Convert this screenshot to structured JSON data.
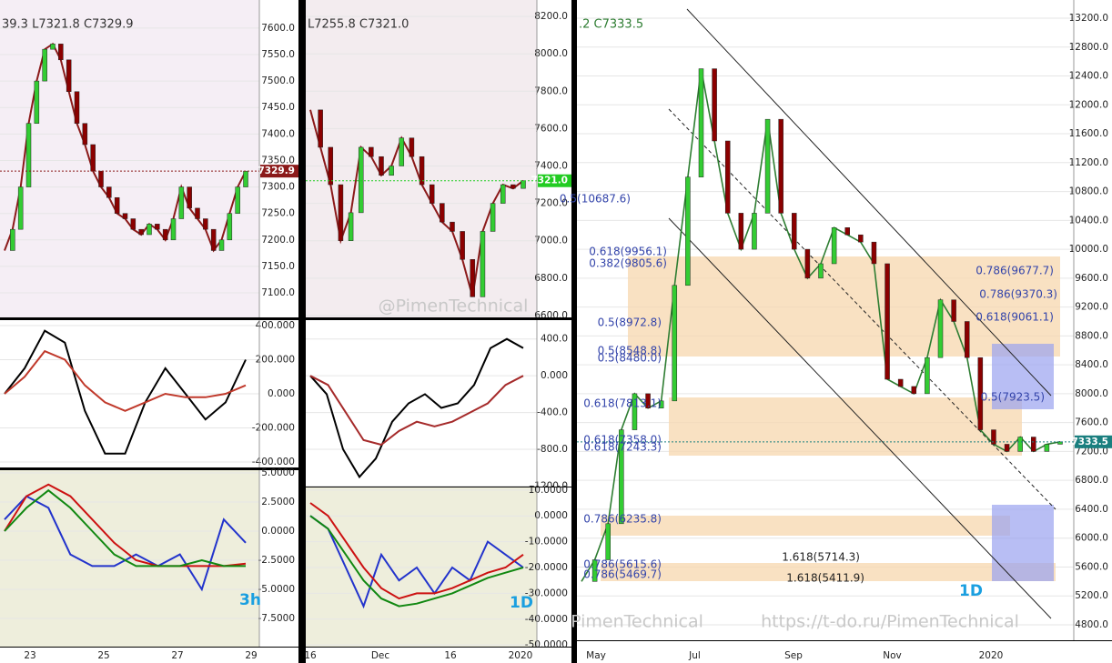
{
  "chart_data": [
    {
      "type": "line",
      "header": "39.3  L7321.8  C7329.9",
      "timeframe": "3h",
      "color": "#8b1a1a",
      "xlabels": [
        "23",
        "25",
        "27",
        "29"
      ],
      "values": [
        7180,
        7220,
        7300,
        7420,
        7500,
        7560,
        7570,
        7540,
        7480,
        7420,
        7380,
        7330,
        7300,
        7280,
        7250,
        7240,
        7220,
        7210,
        7230,
        7220,
        7200,
        7240,
        7300,
        7260,
        7240,
        7220,
        7180,
        7200,
        7250,
        7300,
        7329.9
      ],
      "ylim": [
        7052,
        7653
      ],
      "yticks": [
        {
          "value": 7100,
          "label": "7100.0"
        },
        {
          "value": 7150,
          "label": "7150.0"
        },
        {
          "value": 7200,
          "label": "7200.0"
        },
        {
          "value": 7250,
          "label": "7250.0"
        },
        {
          "value": 7300,
          "label": "7300.0"
        },
        {
          "value": 7350,
          "label": "7350.0"
        },
        {
          "value": 7400,
          "label": "7400.0"
        },
        {
          "value": 7450,
          "label": "7450.0"
        },
        {
          "value": 7500,
          "label": "7500.0"
        },
        {
          "value": 7550,
          "label": "7550.0"
        },
        {
          "value": 7600,
          "label": "7600.0"
        }
      ],
      "last_price": {
        "value": 7329.9,
        "label": "7329.9"
      },
      "last_color": "#8b1a1a",
      "indicators": [
        {
          "ylim": [
            -437,
            432
          ],
          "yticks": [
            {
              "value": 400,
              "label": "400.000"
            },
            {
              "value": 200,
              "label": "200.000"
            },
            {
              "value": 0,
              "label": "0.000"
            },
            {
              "value": -200,
              "label": "-200.000"
            },
            {
              "value": -400,
              "label": "-400.000"
            }
          ],
          "series": [
            {
              "color": "#000000",
              "values": [
                0,
                150,
                370,
                300,
                -100,
                -350,
                -350,
                -50,
                150,
                0,
                -150,
                -50,
                200
              ]
            },
            {
              "color": "#c0392b",
              "values": [
                0,
                100,
                250,
                200,
                50,
                -50,
                -100,
                -50,
                0,
                -20,
                -20,
                0,
                50
              ]
            }
          ]
        },
        {
          "ylim": [
            -10,
            5.23
          ],
          "yticks": [
            {
              "value": 5,
              "label": "5.0000"
            },
            {
              "value": 2.5,
              "label": "2.5000"
            },
            {
              "value": 0,
              "label": "0.0000"
            },
            {
              "value": -2.5,
              "label": "-2.5000"
            },
            {
              "value": -5,
              "label": "-5.0000"
            },
            {
              "value": -7.5,
              "label": "-7.5000"
            }
          ],
          "series": [
            {
              "color": "#2233cc",
              "values": [
                1,
                3,
                2,
                -2,
                -3,
                -3,
                -2,
                -3,
                -2,
                -5,
                1,
                -1
              ]
            },
            {
              "color": "#cc1111",
              "values": [
                0,
                3,
                4,
                3,
                1,
                -1,
                -2.5,
                -3,
                -3,
                -3,
                -3,
                -2.8
              ]
            },
            {
              "color": "#118811",
              "values": [
                0,
                2,
                3.5,
                2,
                0,
                -2,
                -3,
                -3,
                -3,
                -2.5,
                -3,
                -3
              ]
            }
          ]
        }
      ]
    },
    {
      "type": "line",
      "header": "L7255.8  C7321.0",
      "timeframe": "1D",
      "color": "#8b1a1a",
      "xlabels": [
        "16",
        "Dec",
        "16",
        "2020"
      ],
      "values": [
        7700,
        7500,
        7300,
        7000,
        7150,
        7500,
        7450,
        7350,
        7400,
        7550,
        7450,
        7300,
        7200,
        7100,
        7050,
        6900,
        6700,
        7050,
        7200,
        7300,
        7280,
        7321
      ],
      "ylim": [
        6585,
        8288
      ],
      "yticks": [
        {
          "value": 6600,
          "label": "6600.0"
        },
        {
          "value": 6800,
          "label": "6800.0"
        },
        {
          "value": 7000,
          "label": "7000.0"
        },
        {
          "value": 7200,
          "label": "7200.0"
        },
        {
          "value": 7400,
          "label": "7400.0"
        },
        {
          "value": 7600,
          "label": "7600.0"
        },
        {
          "value": 7800,
          "label": "7800.0"
        },
        {
          "value": 8000,
          "label": "8000.0"
        },
        {
          "value": 8200,
          "label": "8200.0"
        }
      ],
      "last_price": {
        "value": 7321,
        "label": "7321.0"
      },
      "last_color": "#22cc22",
      "indicators": [
        {
          "ylim": [
            -1215,
            605
          ],
          "yticks": [
            {
              "value": 400,
              "label": "400.0"
            },
            {
              "value": 0,
              "label": "0.000"
            },
            {
              "value": -400,
              "label": "-400.0"
            },
            {
              "value": -800,
              "label": "-800.0"
            },
            {
              "value": -1200,
              "label": "-1200.0"
            }
          ],
          "series": [
            {
              "color": "#000000",
              "values": [
                0,
                -200,
                -800,
                -1100,
                -900,
                -500,
                -300,
                -200,
                -350,
                -300,
                -100,
                300,
                400,
                300
              ]
            },
            {
              "color": "#a52a2a",
              "values": [
                0,
                -100,
                -400,
                -700,
                -750,
                -600,
                -500,
                -550,
                -500,
                -400,
                -300,
                -100,
                0
              ]
            }
          ]
        },
        {
          "ylim": [
            -51,
            11
          ],
          "yticks": [
            {
              "value": 10,
              "label": "10.0000"
            },
            {
              "value": 0,
              "label": "0.0000"
            },
            {
              "value": -10,
              "label": "-10.0000"
            },
            {
              "value": -20,
              "label": "-20.0000"
            },
            {
              "value": -30,
              "label": "-30.0000"
            },
            {
              "value": -40,
              "label": "-40.0000"
            },
            {
              "value": -50,
              "label": "-50.0000"
            }
          ],
          "series": [
            {
              "color": "#2233cc",
              "values": [
                0,
                -5,
                -20,
                -35,
                -15,
                -25,
                -20,
                -30,
                -20,
                -25,
                -10,
                -15,
                -20
              ]
            },
            {
              "color": "#cc1111",
              "values": [
                5,
                0,
                -10,
                -20,
                -28,
                -32,
                -30,
                -30,
                -28,
                -25,
                -22,
                -20,
                -15
              ]
            },
            {
              "color": "#118811",
              "values": [
                0,
                -5,
                -15,
                -25,
                -32,
                -35,
                -34,
                -32,
                -30,
                -27,
                -24,
                -22,
                -20
              ]
            }
          ]
        }
      ]
    },
    {
      "type": "line",
      "header": ".2  C7333.5",
      "timeframe": "1D",
      "color": "#2e7d32",
      "xlabels": [
        "May",
        "Jul",
        "Sep",
        "Nov",
        "2020"
      ],
      "values": [
        5400,
        5700,
        6200,
        7500,
        8000,
        7800,
        7900,
        9500,
        11000,
        12500,
        11500,
        10500,
        10000,
        10500,
        11800,
        10500,
        10000,
        9600,
        9800,
        10300,
        10200,
        10100,
        9800,
        8200,
        8100,
        8000,
        8500,
        9300,
        9000,
        8500,
        7500,
        7300,
        7200,
        7400,
        7200,
        7300,
        7333.5
      ],
      "ylim": [
        4573,
        13452
      ],
      "yticks": [
        {
          "value": 4800,
          "label": "4800.0"
        },
        {
          "value": 5200,
          "label": "5200.0"
        },
        {
          "value": 5600,
          "label": "5600.0"
        },
        {
          "value": 6000,
          "label": "6000.0"
        },
        {
          "value": 6400,
          "label": "6400.0"
        },
        {
          "value": 6800,
          "label": "6800.0"
        },
        {
          "value": 7200,
          "label": "7200.0"
        },
        {
          "value": 7600,
          "label": "7600.0"
        },
        {
          "value": 8000,
          "label": "8000.0"
        },
        {
          "value": 8400,
          "label": "8400.0"
        },
        {
          "value": 8800,
          "label": "8800.0"
        },
        {
          "value": 9200,
          "label": "9200.0"
        },
        {
          "value": 9600,
          "label": "9600.0"
        },
        {
          "value": 10000,
          "label": "10000.0"
        },
        {
          "value": 10400,
          "label": "10400.0"
        },
        {
          "value": 10800,
          "label": "10800.0"
        },
        {
          "value": 11200,
          "label": "11200.0"
        },
        {
          "value": 11600,
          "label": "11600.0"
        },
        {
          "value": 12000,
          "label": "12000.0"
        },
        {
          "value": 12400,
          "label": "12400.0"
        },
        {
          "value": 12800,
          "label": "12800.0"
        },
        {
          "value": 13200,
          "label": "13200.0"
        }
      ],
      "last_price": {
        "value": 7333.5,
        "label": "7333.5"
      },
      "last_color": "#1a7f7f",
      "annotations": [
        "0.5(10687.6)",
        "0.618(9956.1)",
        "0.382(9805.6)",
        "0.5(8972.8)",
        "0.5(8548.8)",
        "0.5(8480.0)",
        "0.618(7813.1)",
        "0.618(7358.0)",
        "0.618(7243.3)",
        "0.786(6235.8)",
        "0.786(5615.6)",
        "0.786(5469.7)",
        "1.618(5714.3)",
        "1.618(5411.9)",
        "0.786(9677.7)",
        "0.786(9370.3)",
        "0.618(9061.1)",
        "0.5(7923.5)"
      ]
    }
  ],
  "watermarks": [
    "@PimenTechnical",
    "PimenTechnical",
    "https://t-do.ru/PimenTechnical"
  ]
}
